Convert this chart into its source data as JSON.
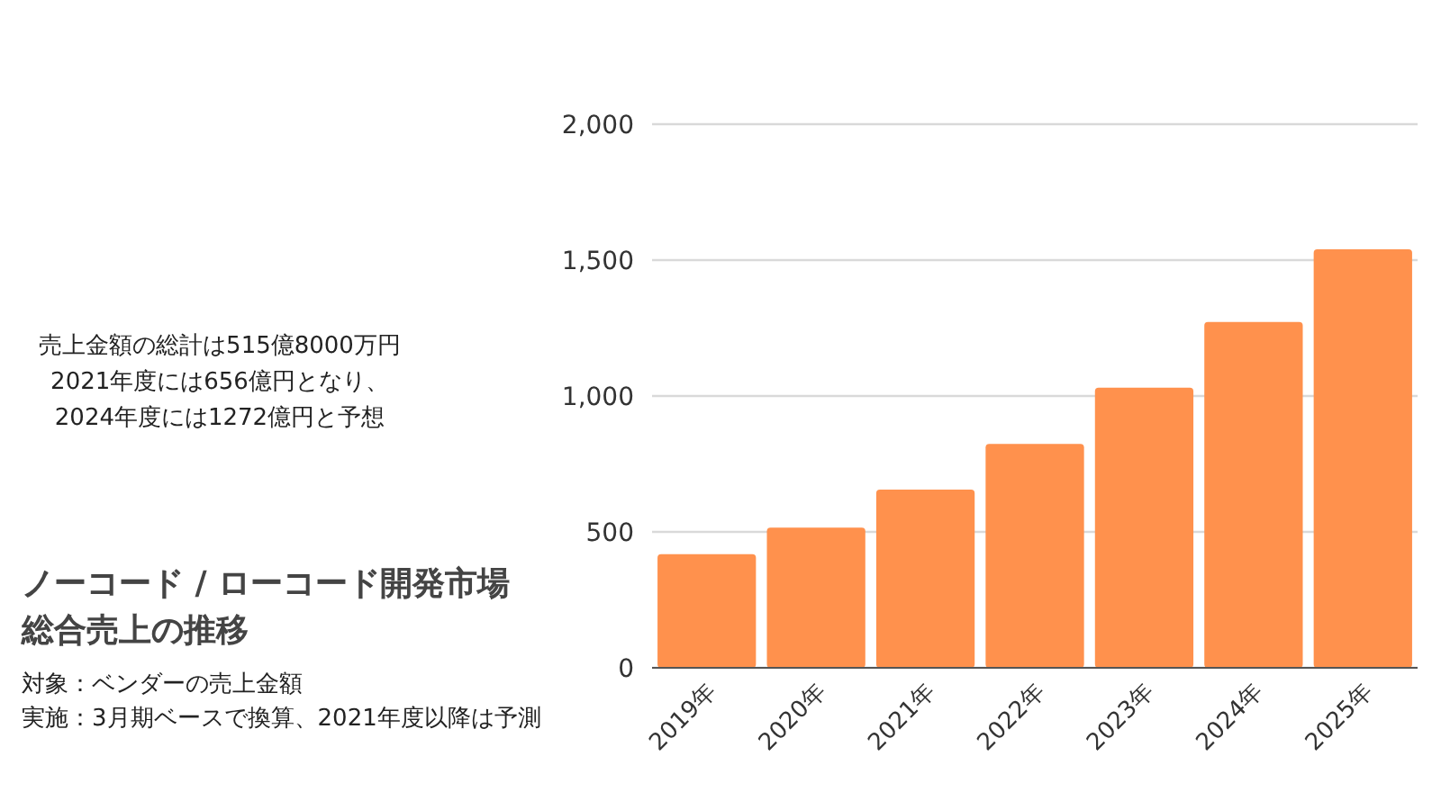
{
  "chart_data": {
    "type": "bar",
    "title": "ノーコード / ローコード開発市場",
    "subtitle": "総合売上の推移",
    "categories": [
      "2019年",
      "2020年",
      "2021年",
      "2022年",
      "2023年",
      "2024年",
      "2025年"
    ],
    "values": [
      418,
      516,
      656,
      824,
      1031,
      1272,
      1540
    ],
    "color": "#ff914d",
    "ylim": [
      0,
      2000
    ],
    "yticks": [
      0,
      {
        "value": 500,
        "label": "500"
      },
      {
        "value": 1000,
        "label": "1,000"
      },
      {
        "value": 1500,
        "label": "1,500"
      },
      {
        "value": 2000,
        "label": "2,000"
      }
    ],
    "grid": "y",
    "annotations": [
      "売上金額の総計は515億8000万円",
      "2021年度には656億円となり、",
      "2024年度には1272億円と予想",
      "対象：ベンダーの売上金額",
      "実施：3月期ベースで換算、2021年度以降は予測"
    ]
  }
}
